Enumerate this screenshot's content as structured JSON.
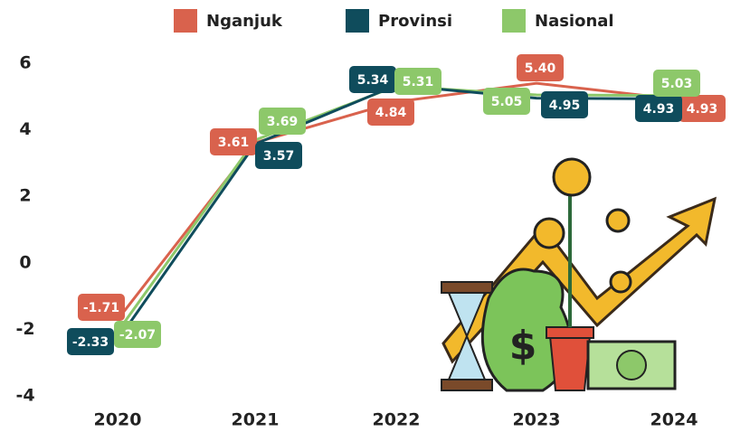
{
  "chart_data": {
    "type": "line",
    "categories": [
      "2020",
      "2021",
      "2022",
      "2023",
      "2024"
    ],
    "series": [
      {
        "name": "Nganjuk",
        "color": "#d9624d",
        "values": [
          -1.71,
          3.61,
          4.84,
          5.4,
          4.93
        ],
        "value_labels": [
          "-1.71",
          "3.61",
          "4.84",
          "5.40",
          "4.93"
        ]
      },
      {
        "name": "Provinsi",
        "color": "#0f4c5c",
        "values": [
          -2.33,
          3.57,
          5.34,
          4.95,
          4.93
        ],
        "value_labels": [
          "-2.33",
          "3.57",
          "5.34",
          "4.95",
          "4.93"
        ]
      },
      {
        "name": "Nasional",
        "color": "#8dc86a",
        "values": [
          -2.07,
          3.69,
          5.31,
          5.05,
          5.03
        ],
        "value_labels": [
          "-2.07",
          "3.69",
          "5.31",
          "5.05",
          "5.03"
        ]
      }
    ],
    "ylim": [
      -4,
      6
    ],
    "yticks": [
      -4,
      -2,
      0,
      2,
      4,
      6
    ],
    "legend": "top"
  }
}
